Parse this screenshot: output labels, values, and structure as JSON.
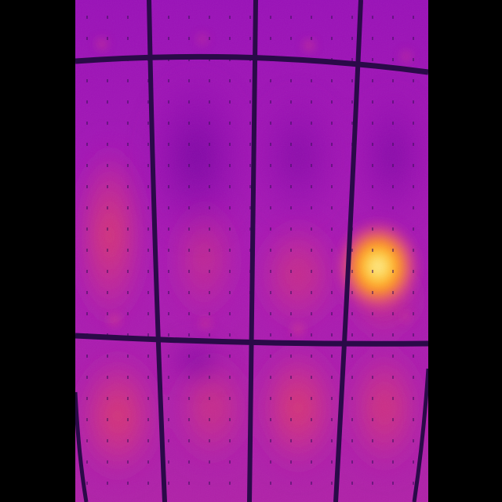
{
  "image": {
    "kind": "thermal-infrared-photo",
    "subject": "solar-panel-array",
    "palette": {
      "background": "#000000",
      "cold": "#2a0a4a",
      "frame": "#3a1a5a",
      "cool": "#7a0aa0",
      "base": "#a010b8",
      "warm": "#c83a90",
      "warmer": "#e04870",
      "hot": "#ff8c1a",
      "hottest": "#ffe060"
    },
    "panel_grid": {
      "rows_visible": 3,
      "columns_visible": 4
    },
    "hotspot": {
      "location": "right-middle-panel",
      "intensity": "high"
    }
  }
}
